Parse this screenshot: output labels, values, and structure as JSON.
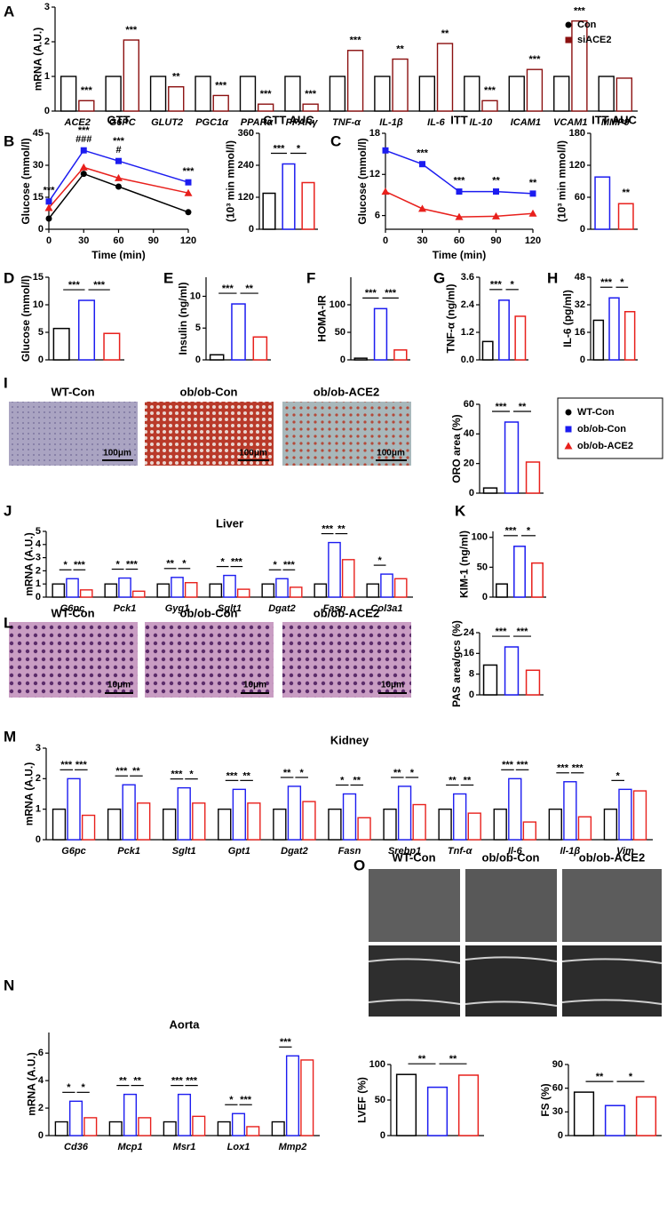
{
  "legend": {
    "entries": [
      {
        "name": "WT-Con",
        "color": "#000000",
        "marker": "circle"
      },
      {
        "name": "ob/ob-Con",
        "color": "#1c1cf0",
        "marker": "square"
      },
      {
        "name": "ob/ob-ACE2",
        "color": "#e8201c",
        "marker": "triangle"
      }
    ]
  },
  "micrographs": [
    {
      "labels": [
        "WT-Con",
        "ob/ob-Con",
        "ob/ob-ACE2"
      ],
      "scale_bars": [
        "100μm",
        "100μm",
        "100μm"
      ]
    },
    {
      "labels": [
        "WT-Con",
        "ob/ob-Con",
        "ob/ob-ACE2"
      ],
      "scale_bars": [
        "10μm",
        "10μm",
        "10μm"
      ]
    },
    {
      "labels": [
        "WT-Con",
        "ob/ob-Con",
        "ob/ob-ACE2"
      ]
    }
  ],
  "chart_data": [
    {
      "type": "grouped_bar",
      "panel": "A",
      "ylabel": "mRNA (A.U.)",
      "ylim": [
        0,
        3
      ],
      "yticks": [
        0,
        1,
        2,
        3
      ],
      "categories": [
        "ACE2",
        "G6PC",
        "GLUT2",
        "PGC1α",
        "PPARα",
        "PPARγ",
        "TNF-α",
        "IL-1β",
        "IL-6",
        "IL-10",
        "ICAM1",
        "VCAM1",
        "MMP9"
      ],
      "series": [
        {
          "name": "Con",
          "color": "#000000",
          "marker": "circle",
          "values": [
            1,
            1,
            1,
            1,
            1,
            1,
            1,
            1,
            1,
            1,
            1,
            1,
            1
          ]
        },
        {
          "name": "siACE2",
          "color": "#8b1010",
          "marker": "square",
          "values": [
            0.3,
            2.05,
            0.7,
            0.45,
            0.2,
            0.2,
            1.75,
            1.5,
            1.95,
            0.3,
            1.2,
            2.6,
            0.95
          ],
          "labels": [
            "***",
            "***",
            "**",
            "***",
            "***",
            "***",
            "***",
            "**",
            "**",
            "***",
            "***",
            "***",
            null
          ]
        }
      ]
    },
    {
      "type": "line",
      "panel": "B",
      "title": "GTT",
      "xlabel": "Time (min)",
      "ylabel": "Glucose (mmol/l)",
      "x": [
        0,
        30,
        60,
        120
      ],
      "xlim": [
        0,
        120
      ],
      "xticks": [
        0,
        30,
        60,
        90,
        120
      ],
      "ylim": [
        0,
        45
      ],
      "yticks": [
        0,
        15,
        30,
        45
      ],
      "series": [
        {
          "color": "#000000",
          "marker": "circle",
          "values": [
            5,
            26,
            20,
            8
          ]
        },
        {
          "color": "#1c1cf0",
          "marker": "square",
          "values": [
            13,
            37,
            32,
            22
          ]
        },
        {
          "color": "#e8201c",
          "marker": "triangle",
          "values": [
            10,
            29,
            24,
            17
          ]
        }
      ],
      "point_labels": [
        [
          "***"
        ],
        [
          "***",
          "###"
        ],
        [
          "***",
          "#"
        ],
        [
          "***"
        ]
      ]
    },
    {
      "type": "bar",
      "title": "GTT AUC",
      "ylabel": "(10³ min mmol/l)",
      "ylim": [
        0,
        360
      ],
      "yticks": [
        0,
        120,
        240,
        360
      ],
      "values": [
        135,
        245,
        175
      ],
      "colors": [
        "#000000",
        "#1c1cf0",
        "#e8201c"
      ],
      "comparisons": [
        "***",
        "*"
      ]
    },
    {
      "type": "line",
      "panel": "C",
      "title": "ITT",
      "xlabel": "Time (min)",
      "ylabel": "Glucose (mmol/l)",
      "x": [
        0,
        30,
        60,
        90,
        120
      ],
      "xlim": [
        0,
        120
      ],
      "xticks": [
        0,
        30,
        60,
        90,
        120
      ],
      "ylim": [
        4,
        18
      ],
      "yticks": [
        6,
        12,
        18
      ],
      "series": [
        {
          "color": "#1c1cf0",
          "marker": "square",
          "values": [
            15.5,
            13.5,
            9.5,
            9.5,
            9.2
          ]
        },
        {
          "color": "#e8201c",
          "marker": "triangle",
          "values": [
            9.5,
            7,
            5.8,
            5.9,
            6.3
          ]
        }
      ],
      "point_labels": [
        null,
        [
          "***"
        ],
        [
          "***"
        ],
        [
          "**"
        ],
        [
          "**"
        ]
      ]
    },
    {
      "type": "bar",
      "title": "ITT AUC",
      "ylabel": "(10³ min mmol/l)",
      "ylim": [
        0,
        180
      ],
      "yticks": [
        0,
        60,
        120,
        180
      ],
      "values": [
        98,
        48
      ],
      "colors": [
        "#1c1cf0",
        "#e8201c"
      ],
      "bar_labels": [
        null,
        "**"
      ]
    },
    {
      "type": "bar",
      "panel": "D",
      "ylabel": "Glucose (mmol/l)",
      "ylim": [
        0,
        15
      ],
      "yticks": [
        0,
        5,
        10,
        15
      ],
      "values": [
        5.7,
        10.8,
        4.8
      ],
      "colors": [
        "#000000",
        "#1c1cf0",
        "#e8201c"
      ],
      "comparisons": [
        "***",
        "***"
      ]
    },
    {
      "type": "bar",
      "panel": "E",
      "ylabel": "Insulin (ng/ml)",
      "ylim": [
        0,
        13
      ],
      "yticks": [
        0,
        5,
        10
      ],
      "values": [
        0.8,
        8.8,
        3.6
      ],
      "colors": [
        "#000000",
        "#1c1cf0",
        "#e8201c"
      ],
      "comparisons": [
        "***",
        "**"
      ]
    },
    {
      "type": "bar",
      "panel": "F",
      "ylabel": "HOMA-IR",
      "ylim": [
        0,
        150
      ],
      "yticks": [
        0,
        50,
        100
      ],
      "values": [
        3,
        93,
        18
      ],
      "colors": [
        "#000000",
        "#1c1cf0",
        "#e8201c"
      ],
      "comparisons": [
        "***",
        "***"
      ]
    },
    {
      "type": "bar",
      "panel": "G",
      "ylabel": "TNF-α (ng/ml)",
      "ylim": [
        0,
        3.6
      ],
      "yticks": [
        {
          "value": 0,
          "label": "0.0"
        },
        1.2,
        2.4,
        3.6
      ],
      "values": [
        0.8,
        2.6,
        1.9
      ],
      "colors": [
        "#000000",
        "#1c1cf0",
        "#e8201c"
      ],
      "comparisons": [
        "***",
        "*"
      ]
    },
    {
      "type": "bar",
      "panel": "H",
      "ylabel": "IL-6 (pg/ml)",
      "ylim": [
        0,
        48
      ],
      "yticks": [
        0,
        16,
        32,
        48
      ],
      "values": [
        23,
        36,
        28
      ],
      "colors": [
        "#000000",
        "#1c1cf0",
        "#e8201c"
      ],
      "comparisons": [
        "***",
        "*"
      ]
    },
    {
      "type": "bar",
      "panel": "I",
      "ylabel": "ORO area (%)",
      "ylim": [
        0,
        60
      ],
      "yticks": [
        0,
        20,
        40,
        60
      ],
      "values": [
        3.5,
        48,
        21
      ],
      "colors": [
        "#000000",
        "#1c1cf0",
        "#e8201c"
      ],
      "comparisons": [
        "***",
        "**"
      ]
    },
    {
      "type": "grouped_bar",
      "panel": "J",
      "title": "Liver",
      "ylabel": "mRNA (A.U.)",
      "ylim": [
        0,
        5
      ],
      "yticks": [
        0,
        1,
        2,
        3,
        4,
        5
      ],
      "categories": [
        "G6pc",
        "Pck1",
        "Gyg1",
        "Sglt1",
        "Dgat2",
        "Fasn",
        "Col3a1"
      ],
      "series": [
        {
          "color": "#000000",
          "values": [
            1,
            1,
            1,
            1,
            1,
            1,
            1
          ]
        },
        {
          "color": "#1c1cf0",
          "values": [
            1.4,
            1.45,
            1.5,
            1.65,
            1.4,
            4.15,
            1.75
          ]
        },
        {
          "color": "#e8201c",
          "values": [
            0.55,
            0.45,
            1.1,
            0.6,
            0.75,
            2.85,
            1.4
          ]
        }
      ],
      "comparisons": [
        [
          "*",
          "***"
        ],
        [
          "*",
          "***"
        ],
        [
          "**",
          "*"
        ],
        [
          "*",
          "***"
        ],
        [
          "*",
          "***"
        ],
        [
          "***",
          "**"
        ],
        [
          "*",
          null
        ]
      ]
    },
    {
      "type": "bar",
      "panel": "K",
      "ylabel": "KIM-1 (ng/ml)",
      "ylim": [
        0,
        110
      ],
      "yticks": [
        0,
        50,
        100
      ],
      "values": [
        22,
        85,
        57
      ],
      "colors": [
        "#000000",
        "#1c1cf0",
        "#e8201c"
      ],
      "comparisons": [
        "***",
        "*"
      ]
    },
    {
      "type": "bar",
      "panel": "L",
      "ylabel": "PAS area/gcs (%)",
      "ylim": [
        0,
        24
      ],
      "yticks": [
        0,
        8,
        16,
        24
      ],
      "values": [
        11.5,
        18.5,
        9.5
      ],
      "colors": [
        "#000000",
        "#1c1cf0",
        "#e8201c"
      ],
      "comparisons": [
        "***",
        "***"
      ]
    },
    {
      "type": "grouped_bar",
      "panel": "M",
      "title": "Kidney",
      "ylabel": "mRNA (A.U.)",
      "ylim": [
        0,
        3
      ],
      "yticks": [
        0,
        1,
        2,
        3
      ],
      "categories": [
        "G6pc",
        "Pck1",
        "Sglt1",
        "Gpt1",
        "Dgat2",
        "Fasn",
        "Srebp1",
        "Tnf-α",
        "Il-6",
        "Il-1β",
        "Vim"
      ],
      "series": [
        {
          "color": "#000000",
          "values": [
            1,
            1,
            1,
            1,
            1,
            1,
            1,
            1,
            1,
            1,
            1
          ]
        },
        {
          "color": "#1c1cf0",
          "values": [
            2.0,
            1.8,
            1.7,
            1.65,
            1.75,
            1.5,
            1.75,
            1.5,
            2.0,
            1.9,
            1.65
          ]
        },
        {
          "color": "#e8201c",
          "values": [
            0.8,
            1.2,
            1.2,
            1.2,
            1.25,
            0.72,
            1.15,
            0.87,
            0.58,
            0.75,
            1.6
          ]
        }
      ],
      "comparisons": [
        [
          "***",
          "***"
        ],
        [
          "***",
          "**"
        ],
        [
          "***",
          "*"
        ],
        [
          "***",
          "**"
        ],
        [
          "**",
          "*"
        ],
        [
          "*",
          "**"
        ],
        [
          "**",
          "*"
        ],
        [
          "**",
          "**"
        ],
        [
          "***",
          "***"
        ],
        [
          "***",
          "***"
        ],
        [
          "*",
          null
        ]
      ]
    },
    {
      "type": "grouped_bar",
      "panel": "N",
      "title": "Aorta",
      "ylabel": "mRNA (A.U.)",
      "ylim": [
        0,
        7.5
      ],
      "yticks": [
        0,
        2,
        4,
        6
      ],
      "categories": [
        "Cd36",
        "Mcp1",
        "Msr1",
        "Lox1",
        "Mmp2"
      ],
      "series": [
        {
          "color": "#000000",
          "values": [
            1,
            1,
            1,
            1,
            1
          ]
        },
        {
          "color": "#1c1cf0",
          "values": [
            2.5,
            3.0,
            3.0,
            1.6,
            5.8
          ]
        },
        {
          "color": "#e8201c",
          "values": [
            1.3,
            1.3,
            1.4,
            0.65,
            5.5
          ]
        }
      ],
      "comparisons": [
        [
          "*",
          "*"
        ],
        [
          "**",
          "**"
        ],
        [
          "***",
          "***"
        ],
        [
          "*",
          "***"
        ],
        [
          "***",
          null
        ]
      ]
    },
    {
      "type": "bar",
      "panel": "O",
      "ylabel": "LVEF (%)",
      "ylim": [
        0,
        100
      ],
      "yticks": [
        0,
        50,
        100
      ],
      "values": [
        86,
        68,
        85
      ],
      "colors": [
        "#000000",
        "#1c1cf0",
        "#e8201c"
      ],
      "comparisons": [
        "**",
        "**"
      ]
    },
    {
      "type": "bar",
      "ylabel": "FS (%)",
      "ylim": [
        0,
        90
      ],
      "yticks": [
        0,
        30,
        60,
        90
      ],
      "values": [
        55,
        38,
        49
      ],
      "colors": [
        "#000000",
        "#1c1cf0",
        "#e8201c"
      ],
      "comparisons": [
        "**",
        "*"
      ]
    }
  ]
}
